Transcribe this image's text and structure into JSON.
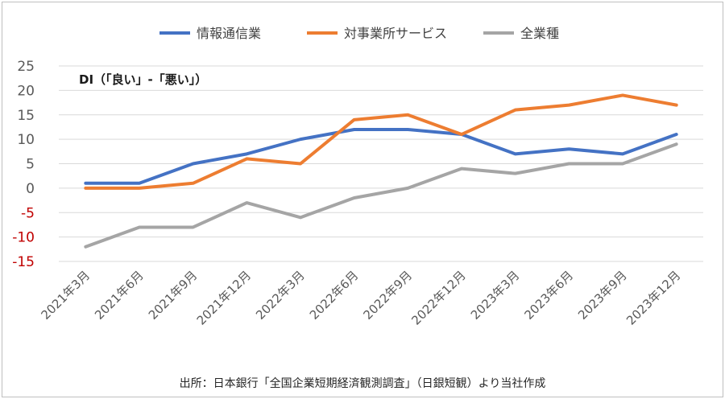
{
  "chart_data": {
    "type": "line",
    "annotation": "DI（「良い」-「悪い」）",
    "source": "出所：日本銀行「全国企業短期経済観測調査」（日銀短観）より当社作成",
    "legend_position": "top",
    "grid": true,
    "ylim": [
      -15,
      25
    ],
    "y_ticks": [
      "25",
      "20",
      "15",
      "10",
      "5",
      "0",
      "-5",
      "-10",
      "-15"
    ],
    "categories": [
      "2021年3月",
      "2021年6月",
      "2021年9月",
      "2021年12月",
      "2022年3月",
      "2022年6月",
      "2022年9月",
      "2022年12月",
      "2023年3月",
      "2023年6月",
      "2023年9月",
      "2023年12月"
    ],
    "series": [
      {
        "name": "情報通信業",
        "color": "#4472c4",
        "values": [
          1,
          1,
          5,
          7,
          10,
          12,
          12,
          11,
          7,
          8,
          7,
          11
        ]
      },
      {
        "name": "対事業所サービス",
        "color": "#ed7d31",
        "values": [
          0,
          0,
          1,
          6,
          5,
          14,
          15,
          11,
          16,
          17,
          19,
          17
        ]
      },
      {
        "name": "全業種",
        "color": "#a5a5a5",
        "values": [
          -12,
          -8,
          -8,
          -3,
          -6,
          -2,
          0,
          4,
          3,
          5,
          5,
          9
        ]
      }
    ],
    "colors": {
      "grid": "#d9d9d9",
      "axis_text": "#595959",
      "negative_tick": "#c00000"
    }
  }
}
